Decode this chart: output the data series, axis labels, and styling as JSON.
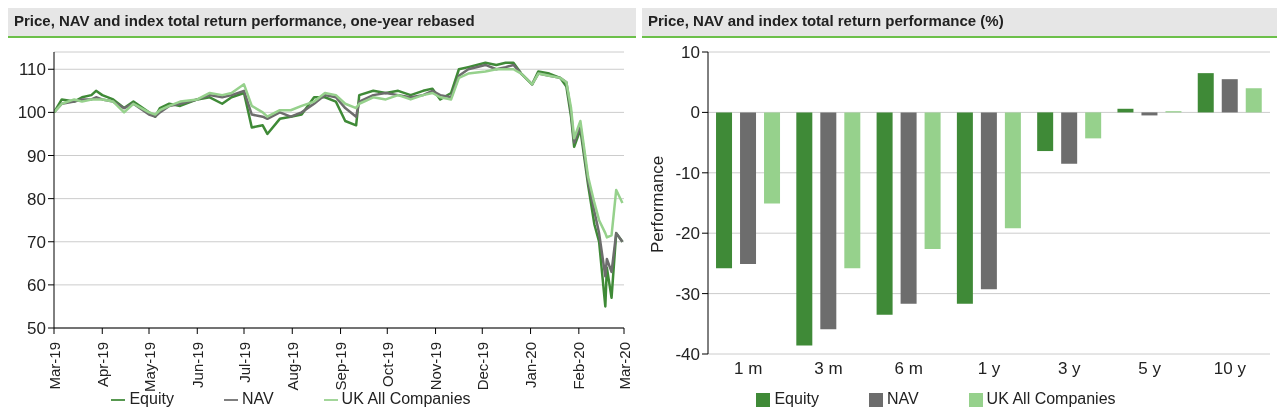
{
  "chart_data": [
    {
      "type": "line",
      "title": "Price, NAV and index total return performance, one-year rebased",
      "x": [
        "2019-03-01",
        "2019-03-06",
        "2019-03-14",
        "2019-03-19",
        "2019-03-25",
        "2019-03-28",
        "2019-04-01",
        "2019-04-08",
        "2019-04-15",
        "2019-04-21",
        "2019-05-01",
        "2019-05-05",
        "2019-05-08",
        "2019-05-14",
        "2019-05-21",
        "2019-06-01",
        "2019-06-09",
        "2019-06-17",
        "2019-06-23",
        "2019-07-01",
        "2019-07-06",
        "2019-07-13",
        "2019-07-16",
        "2019-07-24",
        "2019-07-31",
        "2019-08-07",
        "2019-08-15",
        "2019-08-22",
        "2019-08-29",
        "2019-09-04",
        "2019-09-11",
        "2019-09-13",
        "2019-09-22",
        "2019-09-30",
        "2019-10-08",
        "2019-10-16",
        "2019-10-24",
        "2019-10-30",
        "2019-11-04",
        "2019-11-11",
        "2019-11-16",
        "2019-11-22",
        "2019-12-03",
        "2019-12-10",
        "2019-12-16",
        "2019-12-21",
        "2019-12-26",
        "2020-01-02",
        "2020-01-06",
        "2020-01-13",
        "2020-01-20",
        "2020-01-24",
        "2020-01-27",
        "2020-01-29",
        "2020-02-02",
        "2020-02-07",
        "2020-02-11",
        "2020-02-14",
        "2020-02-18",
        "2020-02-19",
        "2020-02-22",
        "2020-02-25",
        "2020-02-29"
      ],
      "series": [
        {
          "name": "Equity",
          "color": "#3f8a37",
          "values": [
            100,
            103,
            102.5,
            103.5,
            104,
            105,
            104,
            103,
            101,
            102.5,
            100,
            99,
            101,
            102,
            101.5,
            103,
            103.5,
            102,
            103.5,
            104.5,
            96.5,
            97,
            95,
            98.5,
            99,
            99.5,
            103.5,
            103.5,
            102.5,
            98,
            97,
            104,
            105,
            104.5,
            105,
            104,
            105,
            105.5,
            103,
            104.5,
            110,
            110.5,
            111.5,
            111,
            111.5,
            111.5,
            109,
            106.5,
            109.5,
            109,
            108,
            106,
            99,
            92,
            96,
            83,
            74,
            70,
            55,
            64,
            57,
            72,
            70
          ]
        },
        {
          "name": "NAV",
          "color": "#6d6d6d",
          "values": [
            100,
            102,
            102.5,
            103,
            103,
            103.5,
            103,
            102.5,
            101,
            102,
            99.5,
            99,
            100,
            101.5,
            102,
            103,
            104,
            103.5,
            104,
            105,
            99.5,
            99,
            98.5,
            100,
            99,
            100,
            102,
            104,
            103.5,
            101,
            99,
            102.5,
            104,
            104.5,
            104,
            103.5,
            104,
            105,
            104,
            103.5,
            108.5,
            110,
            111,
            110,
            110.5,
            111,
            109,
            106.5,
            109,
            108.5,
            108,
            107,
            100,
            93,
            97,
            84,
            77,
            72,
            62,
            66,
            63,
            72,
            70
          ]
        },
        {
          "name": "UK All Companies",
          "color": "#96d18c",
          "values": [
            100,
            102,
            103,
            102.5,
            103,
            103,
            103,
            102.5,
            100,
            102,
            100,
            99.5,
            100.5,
            101.5,
            102.5,
            103,
            104.5,
            104,
            104.5,
            106.5,
            101.5,
            100,
            99,
            100.5,
            100.5,
            101.5,
            102.5,
            104.5,
            104,
            102,
            101,
            102,
            103.5,
            103,
            104,
            103,
            104,
            104.5,
            103.5,
            103,
            108,
            109,
            109.5,
            110,
            110,
            110,
            109,
            106.5,
            109,
            108.5,
            108,
            107,
            101,
            94,
            98,
            85,
            79,
            75,
            72,
            71,
            71.5,
            82,
            79
          ]
        }
      ],
      "xlim": [
        "2019-03-01",
        "2020-03-01"
      ],
      "xticks": [
        {
          "value": "2019-03-01",
          "label": "Mar-19"
        },
        {
          "value": "2019-04-01",
          "label": "Apr-19"
        },
        {
          "value": "2019-05-01",
          "label": "May-19"
        },
        {
          "value": "2019-06-01",
          "label": "Jun-19"
        },
        {
          "value": "2019-07-01",
          "label": "Jul-19"
        },
        {
          "value": "2019-08-01",
          "label": "Aug-19"
        },
        {
          "value": "2019-09-01",
          "label": "Sep-19"
        },
        {
          "value": "2019-10-01",
          "label": "Oct-19"
        },
        {
          "value": "2019-11-01",
          "label": "Nov-19"
        },
        {
          "value": "2019-12-01",
          "label": "Dec-19"
        },
        {
          "value": "2020-01-01",
          "label": "Jan-20"
        },
        {
          "value": "2020-02-01",
          "label": "Feb-20"
        },
        {
          "value": "2020-03-01",
          "label": "Mar-20"
        }
      ],
      "ylim": [
        50,
        114
      ],
      "yticks": [
        50,
        60,
        70,
        80,
        90,
        100,
        110
      ],
      "grid": "y",
      "legend": "bottom"
    },
    {
      "type": "bar",
      "title": "Price, NAV and index total return performance (%)",
      "ylabel": "Performance",
      "categories": [
        "1 m",
        "3 m",
        "6 m",
        "1 y",
        "3 y",
        "5 y",
        "10 y"
      ],
      "series": [
        {
          "name": "Equity",
          "color": "#3f8a37",
          "values": [
            -25.8,
            -38.6,
            -33.5,
            -31.7,
            -6.4,
            0.6,
            6.5
          ]
        },
        {
          "name": "NAV",
          "color": "#6d6d6d",
          "values": [
            -25.1,
            -35.9,
            -31.7,
            -29.3,
            -8.5,
            -0.5,
            5.5
          ]
        },
        {
          "name": "UK All Companies",
          "color": "#96d18c",
          "values": [
            -15.1,
            -25.8,
            -22.6,
            -19.2,
            -4.3,
            0.2,
            4.0
          ]
        }
      ],
      "ylim": [
        -40,
        10
      ],
      "yticks": [
        -40,
        -30,
        -20,
        -10,
        0,
        10
      ],
      "grid": "y",
      "legend": "bottom"
    }
  ]
}
